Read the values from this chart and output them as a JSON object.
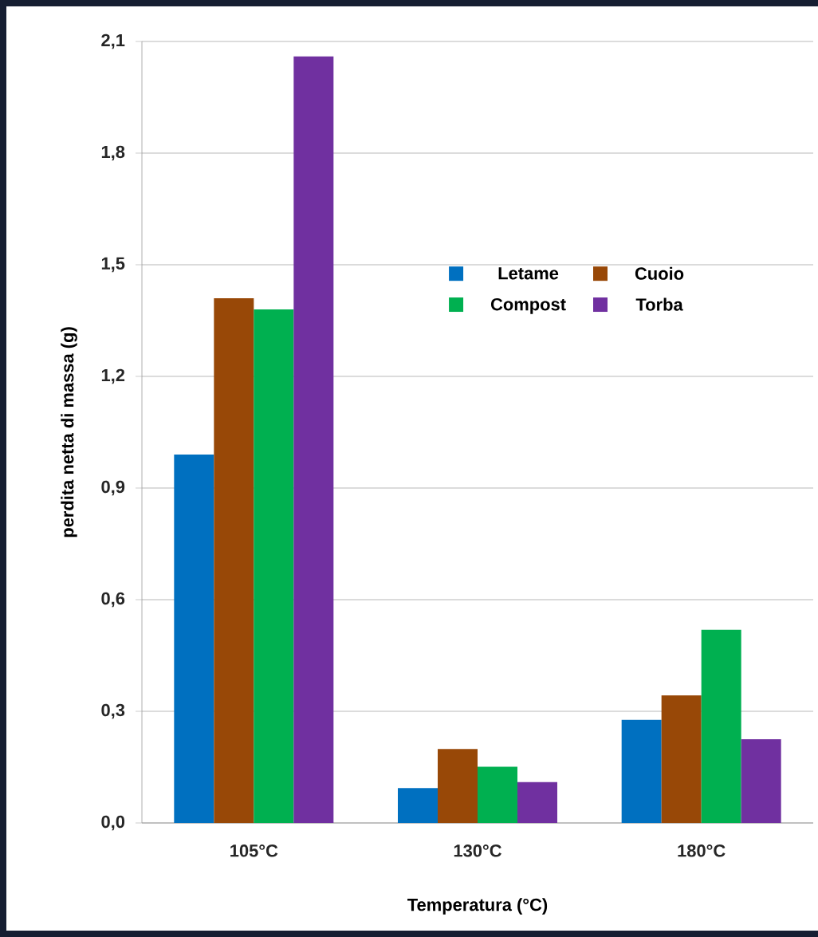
{
  "chart_data": {
    "type": "bar",
    "xlabel": "Temperatura (°C)",
    "ylabel": "perdita netta di massa (g)",
    "categories": [
      "105°C",
      "130°C",
      "180°C"
    ],
    "series": [
      {
        "name": "Letame",
        "color": "#0070c0",
        "values": [
          0.99,
          0.094,
          0.277
        ]
      },
      {
        "name": "Cuoio",
        "color": "#984807",
        "values": [
          1.41,
          0.199,
          0.343
        ]
      },
      {
        "name": "Compost",
        "color": "#00b050",
        "values": [
          1.38,
          0.151,
          0.519
        ]
      },
      {
        "name": "Torba",
        "color": "#7030a0",
        "values": [
          2.06,
          0.11,
          0.225
        ]
      }
    ],
    "ylim": [
      0,
      2.1
    ],
    "yticks": [
      {
        "value": 0,
        "label": "0,0"
      },
      {
        "value": 0.3,
        "label": "0,3"
      },
      {
        "value": 0.6,
        "label": "0,6"
      },
      {
        "value": 0.9,
        "label": "0,9"
      },
      {
        "value": 1.2,
        "label": "1,2"
      },
      {
        "value": 1.5,
        "label": "1,5"
      },
      {
        "value": 1.8,
        "label": "1,8"
      },
      {
        "value": 2.1,
        "label": "2,1"
      }
    ],
    "grid": "y",
    "legend": "top right"
  }
}
